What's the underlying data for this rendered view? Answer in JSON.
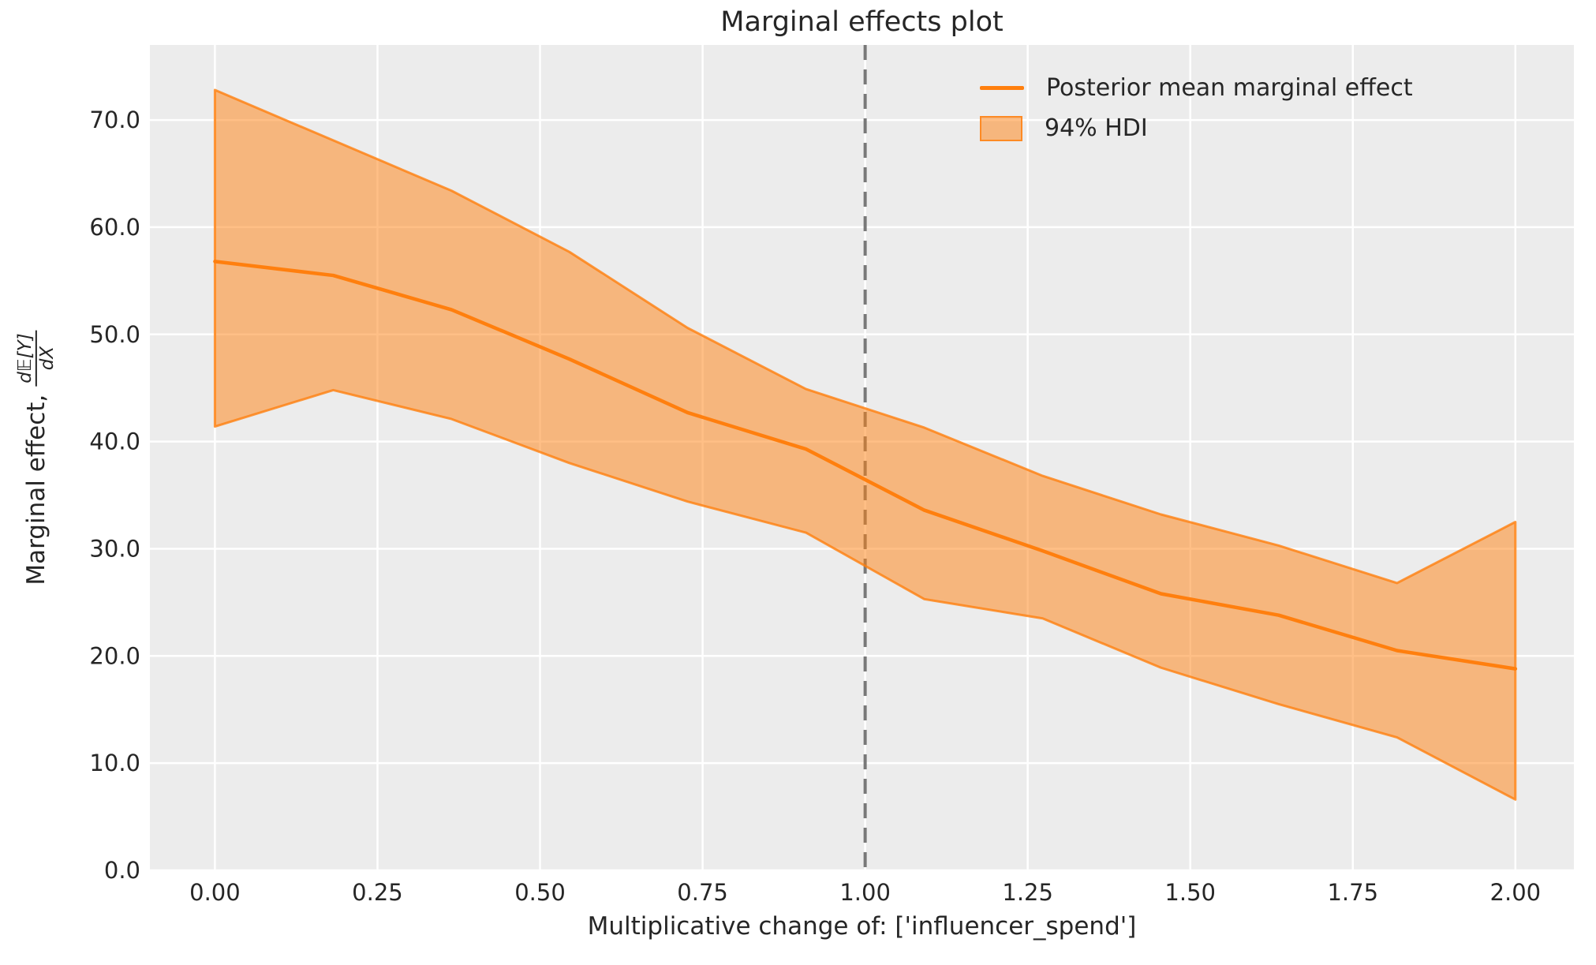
{
  "figure": {
    "title": "Marginal effects plot"
  },
  "axes": {
    "xlabel": "Multiplicative change of: ['influencer_spend']",
    "ylabel": {
      "prefix": "Marginal effect,",
      "frac_numerator": "d𝔼[Y]",
      "frac_denominator": "dX"
    }
  },
  "legend": {
    "items": [
      {
        "label": "Posterior mean marginal effect",
        "marker": "line"
      },
      {
        "label": "94% HDI",
        "marker": "patch"
      }
    ]
  },
  "colors": {
    "line": "#ff7f0e",
    "band_fill": "rgba(255,127,14,0.5)",
    "band_edge": "rgba(255,127,14,0.8)",
    "axes_background": "#ececec",
    "grid": "#ffffff",
    "vline": "#787878",
    "text": "#262626"
  },
  "chart_data": {
    "type": "line",
    "title": "Marginal effects plot",
    "xlabel": "Multiplicative change of: ['influencer_spend']",
    "ylabel": "Marginal effect, d𝔼[Y]/dX",
    "grid": true,
    "legend_position": "upper right",
    "xlim": [
      -0.1,
      2.09
    ],
    "ylim": [
      0,
      77
    ],
    "vline_x": 1.0,
    "x": [
      0.0,
      0.182,
      0.364,
      0.545,
      0.727,
      0.909,
      1.091,
      1.273,
      1.455,
      1.636,
      1.818,
      2.0
    ],
    "series": [
      {
        "name": "Posterior mean marginal effect",
        "values": [
          56.8,
          55.5,
          52.3,
          47.7,
          42.7,
          39.3,
          33.6,
          29.8,
          25.8,
          23.8,
          20.5,
          18.8
        ]
      },
      {
        "name": "94% HDI lower",
        "values": [
          41.4,
          44.8,
          42.1,
          38.0,
          34.4,
          31.5,
          25.3,
          23.5,
          18.9,
          15.5,
          12.4,
          6.6
        ]
      },
      {
        "name": "94% HDI upper",
        "values": [
          72.8,
          68.1,
          63.4,
          57.7,
          50.6,
          44.9,
          41.3,
          36.8,
          33.2,
          30.3,
          26.8,
          32.5
        ]
      }
    ],
    "xticks": [
      0.0,
      0.25,
      0.5,
      0.75,
      1.0,
      1.25,
      1.5,
      1.75,
      2.0
    ],
    "xtick_labels": [
      "0.00",
      "0.25",
      "0.50",
      "0.75",
      "1.00",
      "1.25",
      "1.50",
      "1.75",
      "2.00"
    ],
    "yticks": [
      0,
      10,
      20,
      30,
      40,
      50,
      60,
      70
    ],
    "ytick_labels": [
      "0.0",
      "10.0",
      "20.0",
      "30.0",
      "40.0",
      "50.0",
      "60.0",
      "70.0"
    ]
  }
}
